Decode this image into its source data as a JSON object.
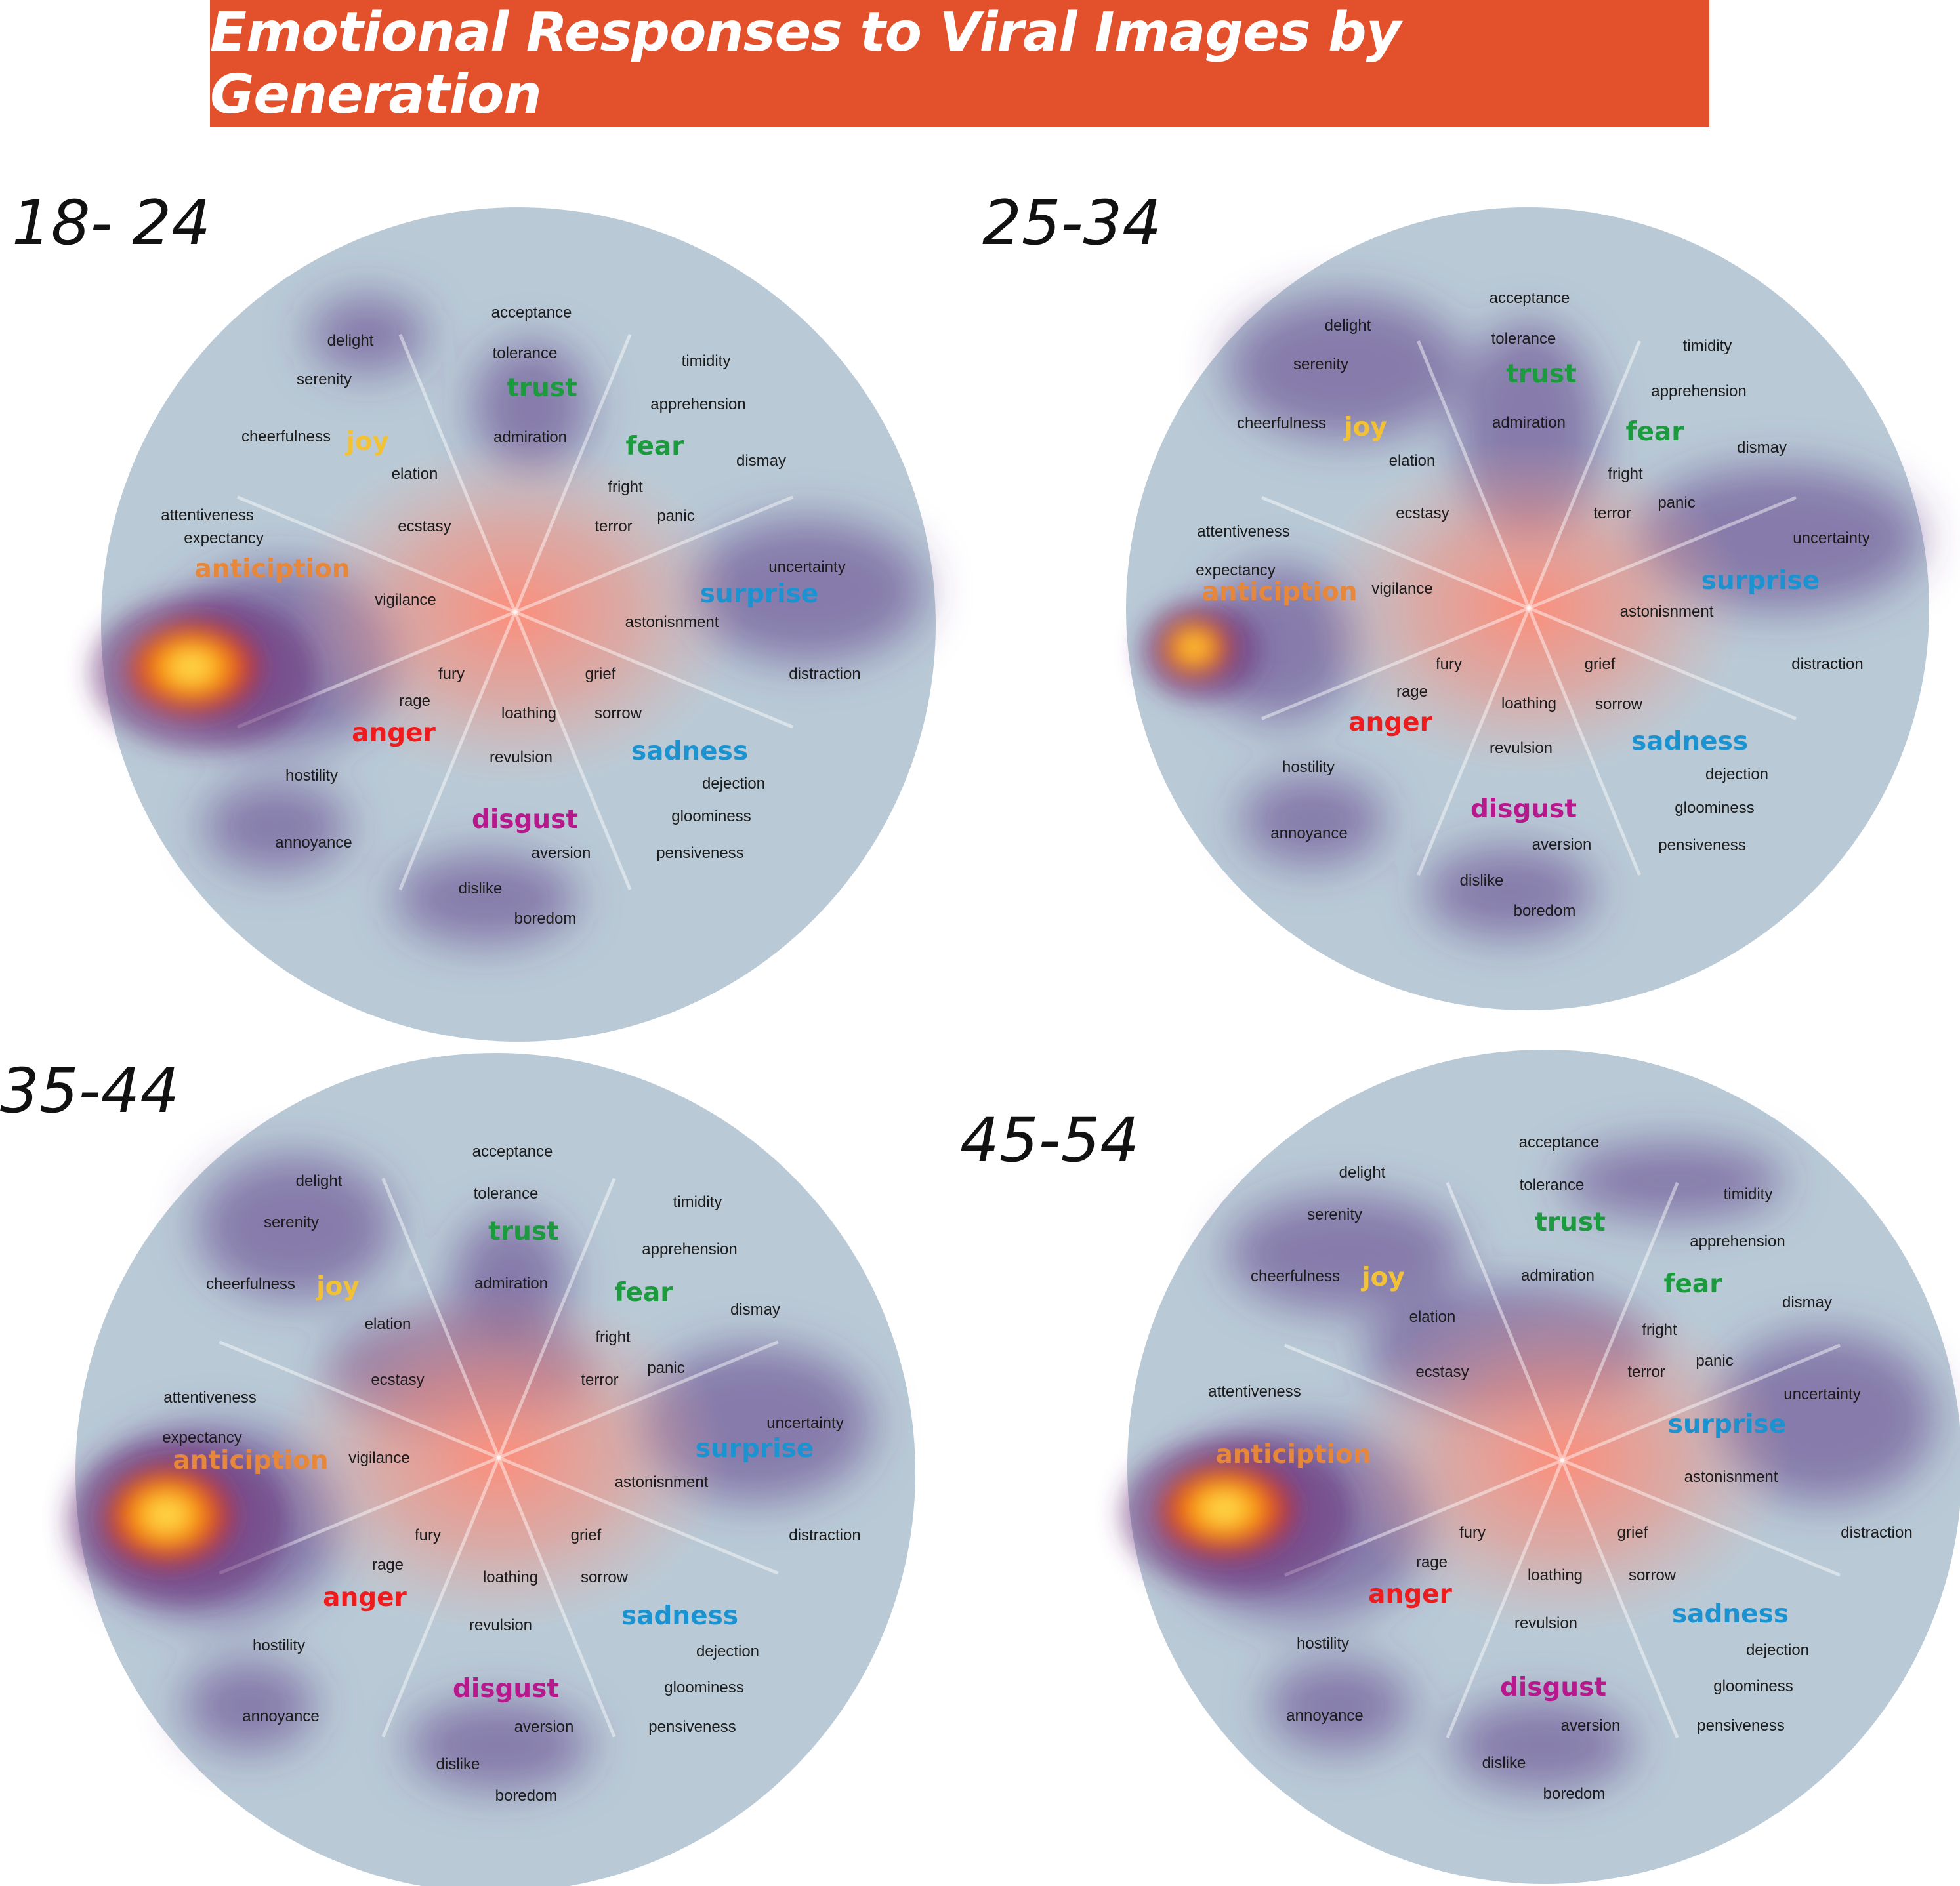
{
  "title": "Emotional Responses to Viral Images by Generation",
  "colors": {
    "title_bg": "#e2512c",
    "disk": "#b9cad6",
    "joy": "#f3c234",
    "trust": "#1b9a3e",
    "fear": "#1b9a3e",
    "surprise": "#1c93d1",
    "sadness": "#1c93d1",
    "disgust": "#b7198d",
    "anger": "#ee1c1c",
    "anticipation": "#e6873a"
  },
  "chart_data": [
    {
      "type": "heatmap",
      "label": "18- 24",
      "emotions": [
        "trust",
        "fear",
        "surprise",
        "sadness",
        "disgust",
        "anger",
        "anticiption",
        "joy"
      ],
      "terms": {
        "trust": [
          "acceptance",
          "tolerance",
          "admiration"
        ],
        "fear": [
          "timidity",
          "apprehension",
          "dismay",
          "fright",
          "panic",
          "terror"
        ],
        "surprise": [
          "uncertainty",
          "astonisnment",
          "distraction"
        ],
        "sadness": [
          "grief",
          "sorrow",
          "dejection",
          "gloominess",
          "pensiveness"
        ],
        "disgust": [
          "loathing",
          "revulsion",
          "aversion",
          "dislike",
          "boredom"
        ],
        "anger": [
          "fury",
          "rage",
          "hostility",
          "annoyance"
        ],
        "anticipation": [
          "attentiveness",
          "expectancy",
          "vigilance"
        ],
        "joy": [
          "delight",
          "serenity",
          "cheerfulness",
          "elation",
          "ecstasy"
        ]
      }
    },
    {
      "type": "heatmap",
      "label": "25-34",
      "emotions": [
        "trust",
        "fear",
        "surprise",
        "sadness",
        "disgust",
        "anger",
        "anticiption",
        "joy"
      ],
      "terms": {
        "trust": [
          "acceptance",
          "tolerance",
          "admiration"
        ],
        "fear": [
          "timidity",
          "apprehension",
          "dismay",
          "fright",
          "panic",
          "terror"
        ],
        "surprise": [
          "uncertainty",
          "astonisnment",
          "distraction"
        ],
        "sadness": [
          "grief",
          "sorrow",
          "dejection",
          "gloominess",
          "pensiveness"
        ],
        "disgust": [
          "loathing",
          "revulsion",
          "aversion",
          "dislike",
          "boredom"
        ],
        "anger": [
          "fury",
          "rage",
          "hostility",
          "annoyance"
        ],
        "anticipation": [
          "attentiveness",
          "expectancy",
          "vigilance"
        ],
        "joy": [
          "delight",
          "serenity",
          "cheerfulness",
          "elation",
          "ecstasy"
        ]
      }
    },
    {
      "type": "heatmap",
      "label": "35-44",
      "emotions": [
        "trust",
        "fear",
        "surprise",
        "sadness",
        "disgust",
        "anger",
        "anticiption",
        "joy"
      ],
      "terms": {
        "trust": [
          "acceptance",
          "tolerance",
          "admiration"
        ],
        "fear": [
          "timidity",
          "apprehension",
          "dismay",
          "fright",
          "panic",
          "terror"
        ],
        "surprise": [
          "uncertainty",
          "astonisnment",
          "distraction"
        ],
        "sadness": [
          "grief",
          "sorrow",
          "dejection",
          "gloominess",
          "pensiveness"
        ],
        "disgust": [
          "loathing",
          "revulsion",
          "aversion",
          "dislike",
          "boredom"
        ],
        "anger": [
          "fury",
          "rage",
          "hostility",
          "annoyance"
        ],
        "anticipation": [
          "attentiveness",
          "expectancy",
          "vigilance"
        ],
        "joy": [
          "delight",
          "serenity",
          "cheerfulness",
          "elation",
          "ecstasy"
        ]
      }
    },
    {
      "type": "heatmap",
      "label": "45-54",
      "emotions": [
        "trust",
        "fear",
        "surprise",
        "sadness",
        "disgust",
        "anger",
        "anticiption",
        "joy"
      ],
      "terms": {
        "trust": [
          "acceptance",
          "tolerance",
          "admiration"
        ],
        "fear": [
          "timidity",
          "apprehension",
          "dismay",
          "fright",
          "panic",
          "terror"
        ],
        "surprise": [
          "uncertainty",
          "astonisnment",
          "distraction"
        ],
        "sadness": [
          "grief",
          "sorrow",
          "dejection",
          "gloominess",
          "pensiveness"
        ],
        "disgust": [
          "loathing",
          "revulsion",
          "aversion",
          "dislike",
          "boredom"
        ],
        "anger": [
          "fury",
          "rage",
          "hostility",
          "annoyance"
        ],
        "anticipation": [
          "attentiveness"
        ],
        "joy": [
          "delight",
          "serenity",
          "cheerfulness",
          "elation",
          "ecstasy"
        ]
      }
    }
  ]
}
